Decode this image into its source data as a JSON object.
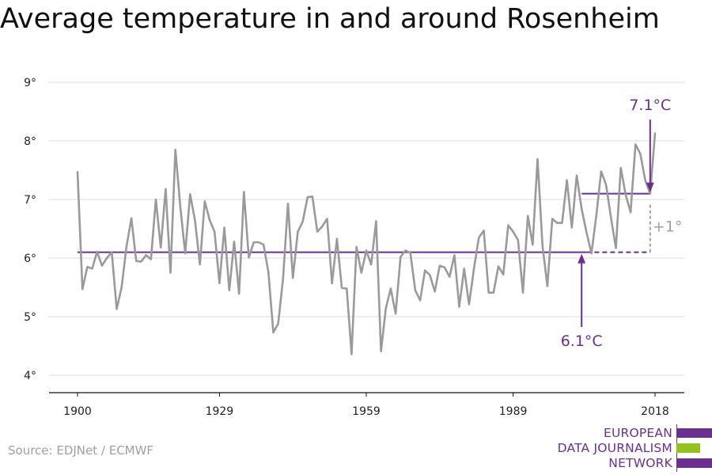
{
  "chart_data": {
    "type": "line",
    "title": "Average temperature in and around Rosenheim",
    "xlabel": "",
    "ylabel": "",
    "xlim": [
      1900,
      2018
    ],
    "ylim": [
      4,
      9
    ],
    "x_ticks": [
      1900,
      1929,
      1959,
      1989,
      2018
    ],
    "x_tick_labels": [
      "1900",
      "1929",
      "1959",
      "1989",
      "2018"
    ],
    "y_ticks": [
      4,
      5,
      6,
      7,
      8,
      9
    ],
    "y_tick_labels": [
      "4°",
      "5°",
      "6°",
      "7°",
      "8°",
      "9°"
    ],
    "grid": true,
    "series": [
      {
        "name": "",
        "color": "#9a9a9a",
        "x": [
          1900,
          1901,
          1902,
          1903,
          1904,
          1905,
          1906,
          1907,
          1908,
          1909,
          1910,
          1911,
          1912,
          1913,
          1914,
          1915,
          1916,
          1917,
          1918,
          1919,
          1920,
          1921,
          1922,
          1923,
          1924,
          1925,
          1926,
          1927,
          1928,
          1929,
          1930,
          1931,
          1932,
          1933,
          1934,
          1935,
          1936,
          1937,
          1938,
          1939,
          1940,
          1941,
          1942,
          1943,
          1944,
          1945,
          1946,
          1947,
          1948,
          1949,
          1950,
          1951,
          1952,
          1953,
          1954,
          1955,
          1956,
          1957,
          1958,
          1959,
          1960,
          1961,
          1962,
          1963,
          1964,
          1965,
          1966,
          1967,
          1968,
          1969,
          1970,
          1971,
          1972,
          1973,
          1974,
          1975,
          1976,
          1977,
          1978,
          1979,
          1980,
          1981,
          1982,
          1983,
          1984,
          1985,
          1986,
          1987,
          1988,
          1989,
          1990,
          1991,
          1992,
          1993,
          1994,
          1995,
          1996,
          1997,
          1998,
          1999,
          2000,
          2001,
          2002,
          2003,
          2004,
          2005,
          2006,
          2007,
          2008,
          2009,
          2010,
          2011,
          2012,
          2013,
          2014,
          2015,
          2016,
          2017,
          2018
        ],
        "values": [
          7.47,
          5.47,
          5.85,
          5.82,
          6.11,
          5.87,
          6.0,
          6.1,
          5.13,
          5.5,
          6.2,
          6.68,
          5.95,
          5.94,
          6.05,
          5.98,
          7.0,
          6.18,
          7.18,
          5.75,
          7.85,
          6.88,
          6.08,
          7.09,
          6.64,
          5.89,
          6.97,
          6.65,
          6.45,
          5.57,
          6.52,
          5.45,
          6.28,
          5.39,
          7.13,
          6.01,
          6.27,
          6.27,
          6.23,
          5.76,
          4.73,
          4.88,
          5.65,
          6.93,
          5.66,
          6.45,
          6.62,
          7.04,
          7.05,
          6.45,
          6.54,
          6.67,
          5.57,
          6.33,
          5.49,
          5.48,
          4.36,
          6.19,
          5.75,
          6.13,
          5.89,
          6.63,
          4.41,
          5.14,
          5.48,
          5.05,
          6.02,
          6.13,
          6.09,
          5.45,
          5.28,
          5.79,
          5.71,
          5.43,
          5.87,
          5.84,
          5.68,
          6.05,
          5.17,
          5.82,
          5.21,
          5.82,
          6.35,
          6.47,
          5.41,
          5.41,
          5.86,
          5.72,
          6.56,
          6.45,
          6.31,
          5.41,
          6.72,
          6.23,
          7.69,
          6.22,
          5.52,
          6.67,
          6.6,
          6.6,
          7.33,
          6.52,
          7.41,
          6.84,
          6.44,
          6.08,
          6.73,
          7.48,
          7.25,
          6.69,
          6.17,
          7.54,
          7.08,
          6.78,
          7.94,
          7.78,
          7.33,
          7.1,
          8.13
        ]
      }
    ],
    "annotations": {
      "baseline": {
        "value": 6.1,
        "label": "6.1°C",
        "x_solid_end": 2004,
        "x_dashed_end": 2017,
        "arrow_x": 2003
      },
      "recent": {
        "value": 7.1,
        "label": "7.1°C",
        "x_start": 2003,
        "x_end": 2017,
        "arrow_x": 2017
      },
      "difference": {
        "label": "+1°"
      },
      "line_color": "#6b2f91",
      "diff_color": "#a0a0a0"
    }
  },
  "footer": {
    "source": "Source: EDJNet / ECMWF",
    "logo": {
      "lines": [
        "EUROPEAN",
        "DATA JOURNALISM",
        "NETWORK"
      ],
      "colors": [
        "#6b2f91",
        "#95c11f",
        "#6b2f91"
      ]
    }
  }
}
